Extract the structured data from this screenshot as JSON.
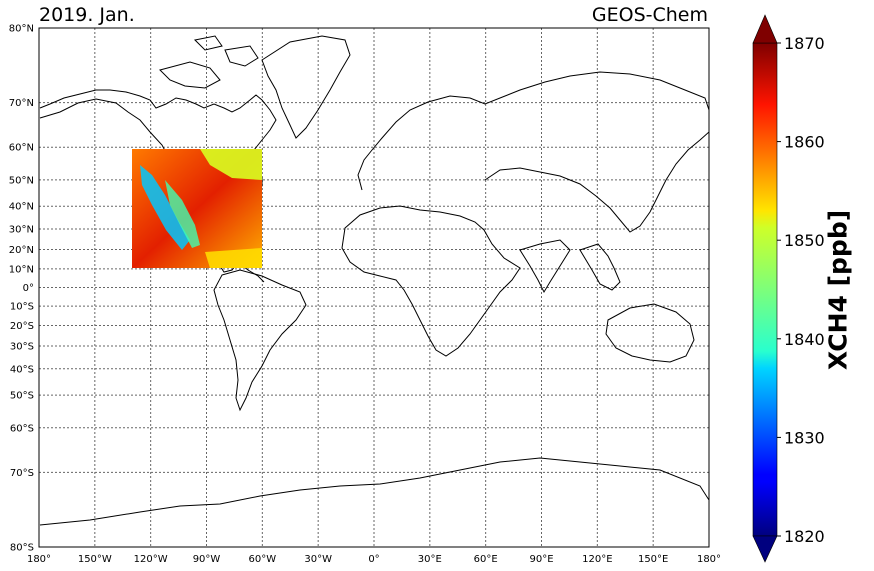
{
  "title_left": "2019. Jan.",
  "title_right": "GEOS-Chem",
  "map": {
    "projection": "mercator",
    "lon_range": [
      -180,
      180
    ],
    "lat_range": [
      -80,
      80
    ],
    "grid": true,
    "lon_ticks": [
      {
        "value": -180,
        "label": "180°"
      },
      {
        "value": -150,
        "label": "150°W"
      },
      {
        "value": -120,
        "label": "120°W"
      },
      {
        "value": -90,
        "label": "90°W"
      },
      {
        "value": -60,
        "label": "60°W"
      },
      {
        "value": -30,
        "label": "30°W"
      },
      {
        "value": 0,
        "label": "0°"
      },
      {
        "value": 30,
        "label": "30°E"
      },
      {
        "value": 60,
        "label": "60°E"
      },
      {
        "value": 90,
        "label": "90°E"
      },
      {
        "value": 120,
        "label": "120°E"
      },
      {
        "value": 150,
        "label": "150°E"
      },
      {
        "value": 180,
        "label": "180°"
      }
    ],
    "lat_ticks": [
      {
        "value": 80,
        "label": "80°N"
      },
      {
        "value": 70,
        "label": "70°N"
      },
      {
        "value": 60,
        "label": "60°N"
      },
      {
        "value": 50,
        "label": "50°N"
      },
      {
        "value": 40,
        "label": "40°N"
      },
      {
        "value": 30,
        "label": "30°N"
      },
      {
        "value": 20,
        "label": "20°N"
      },
      {
        "value": 10,
        "label": "10°N"
      },
      {
        "value": 0,
        "label": "0°"
      },
      {
        "value": -10,
        "label": "10°S"
      },
      {
        "value": -20,
        "label": "20°S"
      },
      {
        "value": -30,
        "label": "30°S"
      },
      {
        "value": -40,
        "label": "40°S"
      },
      {
        "value": -50,
        "label": "50°S"
      },
      {
        "value": -60,
        "label": "60°S"
      },
      {
        "value": -70,
        "label": "70°S"
      },
      {
        "value": -80,
        "label": "80°S"
      }
    ],
    "data_domain": {
      "lon": [
        -130,
        -60
      ],
      "lat": [
        10,
        60
      ]
    }
  },
  "colorbar": {
    "label": "XCH4 [ppb]",
    "colormap": "jet",
    "vmin": 1820,
    "vmax": 1870,
    "extend": "both",
    "ticks": [
      1820,
      1830,
      1840,
      1850,
      1860,
      1870
    ]
  }
}
